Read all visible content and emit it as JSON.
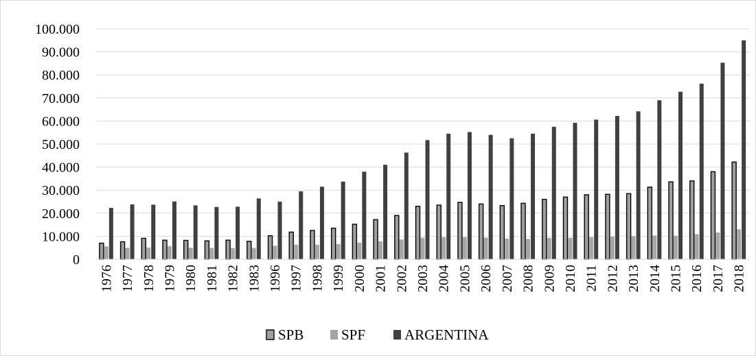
{
  "chart_data": {
    "type": "bar",
    "categories": [
      "1976",
      "1977",
      "1978",
      "1979",
      "1980",
      "1981",
      "1982",
      "1983",
      "1996",
      "1997",
      "1998",
      "1999",
      "2000",
      "2001",
      "2002",
      "2003",
      "2004",
      "2005",
      "2006",
      "2007",
      "2008",
      "2009",
      "2010",
      "2011",
      "2012",
      "2013",
      "2014",
      "2015",
      "2016",
      "2017",
      "2018"
    ],
    "series": [
      {
        "name": "SPB",
        "color": "#9f9f9f",
        "outline": "#000000",
        "values": [
          7000,
          7600,
          9100,
          8300,
          8200,
          8000,
          8300,
          7800,
          10200,
          11800,
          12500,
          13500,
          15200,
          17200,
          19000,
          23000,
          23500,
          24700,
          24000,
          23300,
          24300,
          26000,
          27000,
          28000,
          28200,
          28500,
          31300,
          33600,
          34000,
          38000,
          42200
        ]
      },
      {
        "name": "SPF",
        "color": "#a6a6a6",
        "outline": "none",
        "values": [
          5600,
          5000,
          5100,
          5700,
          5000,
          4900,
          4900,
          4900,
          5900,
          6300,
          6300,
          6600,
          7200,
          7800,
          8600,
          9300,
          9600,
          9600,
          9400,
          9000,
          8800,
          9300,
          9300,
          9600,
          9800,
          10000,
          10300,
          10200,
          10900,
          11600,
          13000
        ]
      },
      {
        "name": "ARGENTINA",
        "color": "#404040",
        "outline": "none",
        "values": [
          22300,
          23800,
          23700,
          25100,
          23400,
          22700,
          22800,
          26400,
          25000,
          29500,
          31500,
          33700,
          38000,
          41000,
          46300,
          51700,
          54500,
          55200,
          54000,
          52500,
          54500,
          57500,
          59200,
          60600,
          62200,
          64200,
          69000,
          72700,
          76200,
          85300,
          95000
        ]
      }
    ],
    "ylim": [
      0,
      100000
    ],
    "yticks": [
      0,
      10000,
      20000,
      30000,
      40000,
      50000,
      60000,
      70000,
      80000,
      90000,
      100000
    ],
    "ytick_labels": [
      "0",
      "10.000",
      "20.000",
      "30.000",
      "40.000",
      "50.000",
      "60.000",
      "70.000",
      "80.000",
      "90.000",
      "100.000"
    ],
    "grid": true,
    "legend_position": "bottom",
    "title": "",
    "xlabel": "",
    "ylabel": ""
  }
}
